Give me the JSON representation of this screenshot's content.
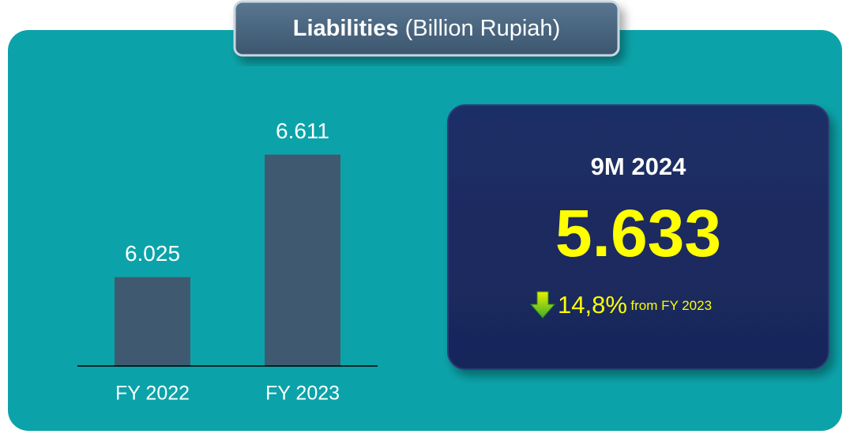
{
  "chart_data": {
    "type": "bar",
    "title": "Liabilities",
    "subtitle": "(Billion Rupiah)",
    "categories": [
      "FY 2022",
      "FY 2023"
    ],
    "values": [
      6025,
      6611
    ],
    "value_labels": [
      "6.025",
      "6.611"
    ],
    "color": "#3f5a70",
    "ylim": [
      5600,
      6700
    ],
    "highlight": {
      "period": "9M 2024",
      "value": 5633,
      "value_label": "5.633",
      "change": 14.8,
      "change_label": "14,8%",
      "change_note": "from FY 2023"
    }
  }
}
